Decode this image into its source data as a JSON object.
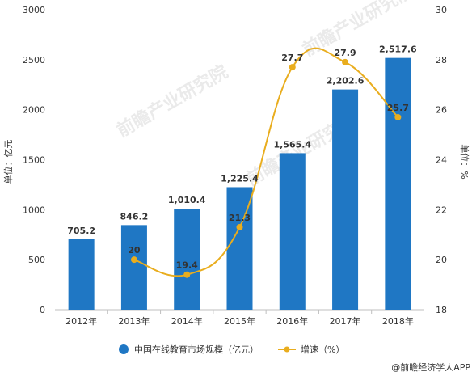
{
  "chart_data": {
    "type": "bar",
    "categories": [
      "2012年",
      "2013年",
      "2014年",
      "2015年",
      "2016年",
      "2017年",
      "2018年"
    ],
    "series": [
      {
        "name": "中国在线教育市场规模（亿元）",
        "type": "bar",
        "axis": "left",
        "values": [
          705.2,
          846.2,
          1010.4,
          1225.4,
          1565.4,
          2202.6,
          2517.6
        ],
        "labels": [
          "705.2",
          "846.2",
          "1,010.4",
          "1,225.4",
          "1,565.4",
          "2,202.6",
          "2,517.6"
        ],
        "color": "#1f77c4"
      },
      {
        "name": "增速（%）",
        "type": "line",
        "axis": "right",
        "values": [
          null,
          20,
          19.4,
          21.3,
          27.7,
          27.9,
          25.7
        ],
        "labels": [
          "",
          "20",
          "19.4",
          "21.3",
          "27.7",
          "27.9",
          "25.7"
        ],
        "color": "#e9ad1e"
      }
    ],
    "ylabel": "单位：亿元",
    "y2label": "单位：%",
    "ylim": [
      0,
      3000
    ],
    "yticks": [
      "0",
      "500",
      "1000",
      "1500",
      "2000",
      "2500",
      "3000"
    ],
    "y2lim": [
      18,
      30
    ],
    "y2ticks": [
      "18",
      "20",
      "22",
      "24",
      "26",
      "28",
      "30"
    ],
    "grid": false,
    "legend": "bottom"
  },
  "watermark": "前瞻产业研究院",
  "source": "@前瞻经济学人APP"
}
